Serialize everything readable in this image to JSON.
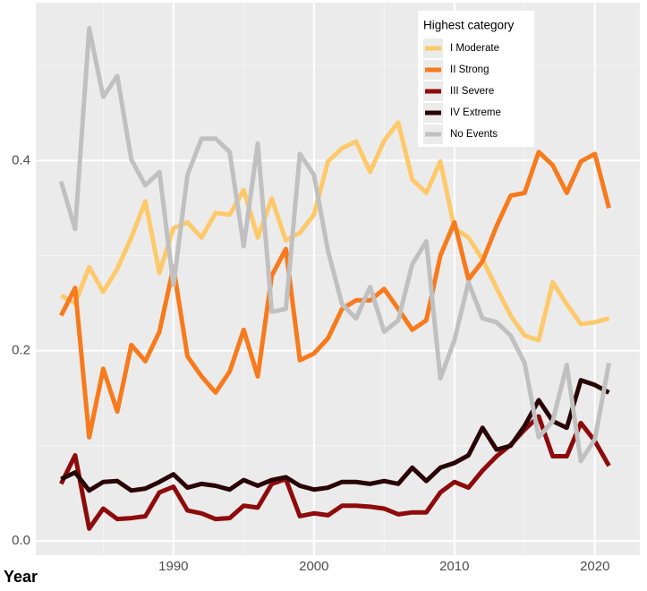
{
  "chart_data": {
    "type": "line",
    "x_label": "Year",
    "legend_title": "Highest category",
    "legend_position": "top-right",
    "grid": true,
    "x": [
      1982,
      1983,
      1984,
      1985,
      1986,
      1987,
      1988,
      1989,
      1990,
      1991,
      1992,
      1993,
      1994,
      1995,
      1996,
      1997,
      1998,
      1999,
      2000,
      2001,
      2002,
      2003,
      2004,
      2005,
      2006,
      2007,
      2008,
      2009,
      2010,
      2011,
      2012,
      2013,
      2014,
      2015,
      2016,
      2017,
      2018,
      2019,
      2020,
      2021
    ],
    "xlim": [
      1980.2,
      2023.2
    ],
    "xticks": [
      1990,
      2000,
      2010,
      2020
    ],
    "ylim": [
      -0.015,
      0.566
    ],
    "yticks": [
      {
        "value": 0,
        "label": "0.0"
      },
      0.2,
      0.4
    ],
    "series": [
      {
        "name": "I Moderate",
        "color": "#fdc96a",
        "values": [
          0.258,
          0.25,
          0.288,
          0.262,
          0.286,
          0.319,
          0.357,
          0.282,
          0.329,
          0.335,
          0.319,
          0.345,
          0.343,
          0.369,
          0.319,
          0.36,
          0.316,
          0.324,
          0.343,
          0.399,
          0.413,
          0.42,
          0.388,
          0.421,
          0.44,
          0.38,
          0.366,
          0.399,
          0.329,
          0.319,
          0.296,
          0.266,
          0.237,
          0.216,
          0.211,
          0.272,
          0.249,
          0.228,
          0.23,
          0.234
        ]
      },
      {
        "name": "II Strong",
        "color": "#f77a1c",
        "values": [
          0.237,
          0.266,
          0.109,
          0.181,
          0.136,
          0.206,
          0.189,
          0.22,
          0.288,
          0.194,
          0.173,
          0.156,
          0.178,
          0.222,
          0.173,
          0.279,
          0.307,
          0.19,
          0.197,
          0.213,
          0.244,
          0.253,
          0.253,
          0.265,
          0.244,
          0.222,
          0.232,
          0.3,
          0.335,
          0.275,
          0.294,
          0.331,
          0.363,
          0.366,
          0.409,
          0.395,
          0.366,
          0.399,
          0.407,
          0.35
        ]
      },
      {
        "name": "III Severe",
        "color": "#8e0b0b",
        "values": [
          0.06,
          0.09,
          0.013,
          0.034,
          0.023,
          0.024,
          0.026,
          0.051,
          0.057,
          0.032,
          0.029,
          0.023,
          0.024,
          0.037,
          0.035,
          0.06,
          0.065,
          0.026,
          0.029,
          0.027,
          0.037,
          0.037,
          0.036,
          0.034,
          0.028,
          0.03,
          0.03,
          0.051,
          0.062,
          0.056,
          0.074,
          0.089,
          0.101,
          0.117,
          0.131,
          0.089,
          0.089,
          0.124,
          0.105,
          0.079
        ]
      },
      {
        "name": "IV Extreme",
        "color": "#2a0505",
        "values": [
          0.065,
          0.072,
          0.053,
          0.062,
          0.063,
          0.053,
          0.055,
          0.062,
          0.07,
          0.056,
          0.06,
          0.058,
          0.054,
          0.064,
          0.058,
          0.064,
          0.067,
          0.058,
          0.054,
          0.056,
          0.062,
          0.062,
          0.06,
          0.063,
          0.06,
          0.077,
          0.063,
          0.077,
          0.082,
          0.09,
          0.119,
          0.096,
          0.1,
          0.121,
          0.148,
          0.126,
          0.119,
          0.169,
          0.164,
          0.156
        ]
      },
      {
        "name": "No Events",
        "color": "#c0c0c0",
        "values": [
          0.378,
          0.328,
          0.539,
          0.467,
          0.489,
          0.401,
          0.374,
          0.388,
          0.269,
          0.385,
          0.423,
          0.423,
          0.409,
          0.31,
          0.418,
          0.241,
          0.244,
          0.407,
          0.385,
          0.305,
          0.249,
          0.234,
          0.267,
          0.22,
          0.232,
          0.291,
          0.315,
          0.171,
          0.211,
          0.272,
          0.234,
          0.23,
          0.216,
          0.187,
          0.109,
          0.126,
          0.185,
          0.084,
          0.107,
          0.187
        ]
      }
    ]
  }
}
